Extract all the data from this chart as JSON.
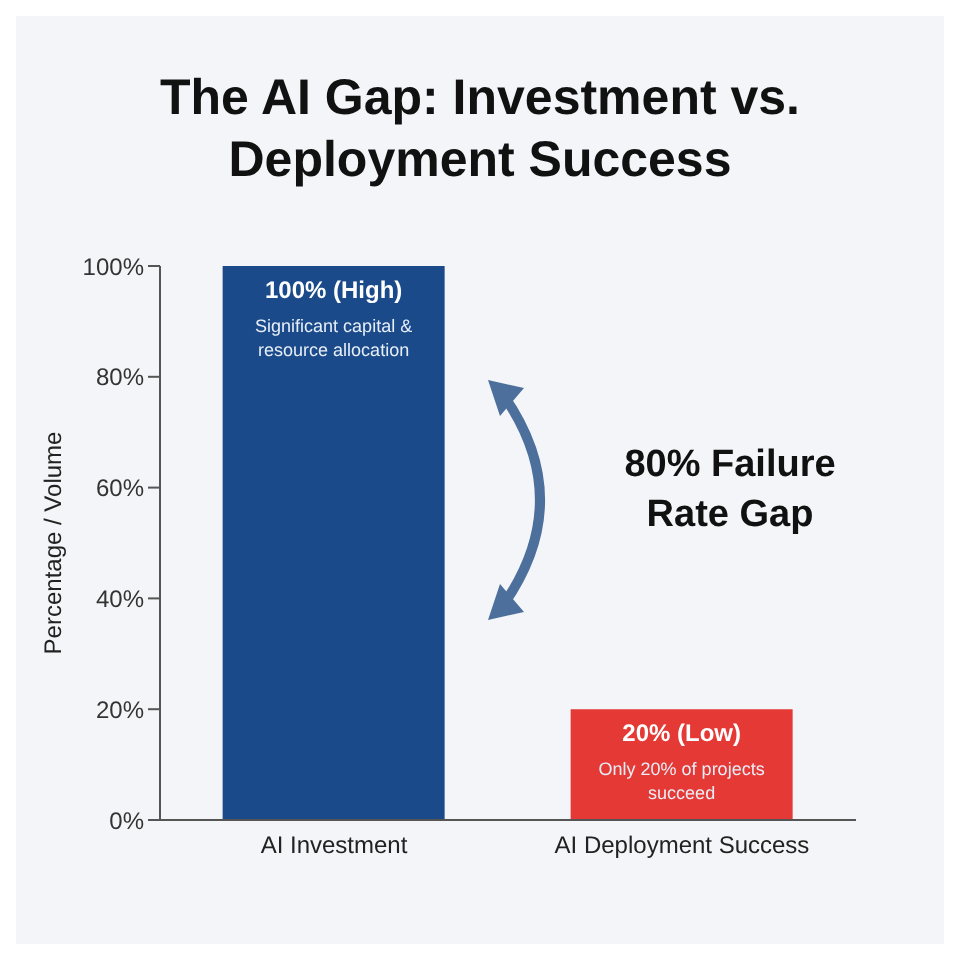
{
  "chart_data": {
    "type": "bar",
    "title": "The AI Gap: Investment vs. Deployment Success",
    "ylabel": "Percentage / Volume",
    "categories": [
      "AI Investment",
      "AI Deployment Success"
    ],
    "values": [
      100,
      20
    ],
    "colors": [
      "#1a4a8a",
      "#e53935"
    ],
    "value_labels": [
      "100% (High)",
      "20% (Low)"
    ],
    "annotations": [
      {
        "text": "Significant capital & resource allocation",
        "x": "AI Investment",
        "y": 100
      },
      {
        "text": "Only 20% of projects succeed",
        "x": "AI Deployment Success",
        "y": 20
      },
      "80% Failure Rate Gap"
    ],
    "ylim": [
      0,
      100
    ],
    "yticks": [
      {
        "value": 0,
        "label": "0%"
      },
      {
        "value": 20,
        "label": "20%"
      },
      {
        "value": 40,
        "label": "40%"
      },
      {
        "value": 60,
        "label": "60%"
      },
      {
        "value": 80,
        "label": "80%"
      },
      {
        "value": 100,
        "label": "100%"
      }
    ],
    "grid": false,
    "legend": false
  }
}
